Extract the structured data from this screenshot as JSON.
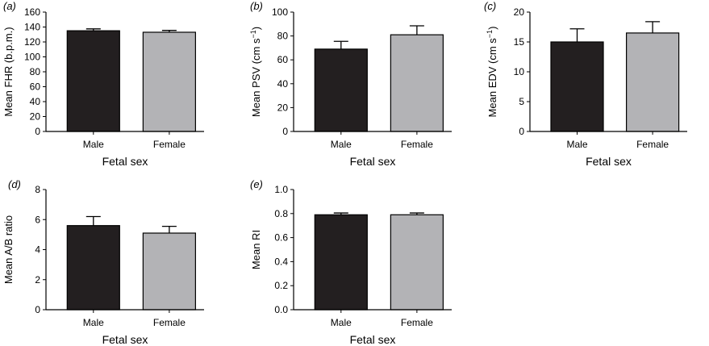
{
  "chart_data": [
    {
      "type": "bar",
      "panel": "a",
      "panel_label": "(a)",
      "categories": [
        "Male",
        "Female"
      ],
      "values": [
        135,
        133
      ],
      "errors": [
        2.5,
        2.5
      ],
      "ylabel": "Mean FHR (b.p.m.)",
      "ylabel_sup": "",
      "ylabel_end": "",
      "xlabel": "Fetal sex",
      "ylim": [
        0,
        160
      ],
      "yticks": [
        0,
        20,
        40,
        60,
        80,
        100,
        120,
        140,
        160
      ],
      "colors": [
        "#231f20",
        "#b3b3b6"
      ]
    },
    {
      "type": "bar",
      "panel": "b",
      "panel_label": "(b)",
      "categories": [
        "Male",
        "Female"
      ],
      "values": [
        69,
        81
      ],
      "errors": [
        6.5,
        7.5
      ],
      "ylabel": "Mean PSV (cm s",
      "ylabel_sup": "−1",
      "ylabel_end": ")",
      "xlabel": "Fetal sex",
      "ylim": [
        0,
        100
      ],
      "yticks": [
        0,
        20,
        40,
        60,
        80,
        100
      ],
      "colors": [
        "#231f20",
        "#b3b3b6"
      ]
    },
    {
      "type": "bar",
      "panel": "c",
      "panel_label": "(c)",
      "categories": [
        "Male",
        "Female"
      ],
      "values": [
        15,
        16.5
      ],
      "errors": [
        2.2,
        1.9
      ],
      "ylabel": "Mean EDV (cm s",
      "ylabel_sup": "−1",
      "ylabel_end": ")",
      "xlabel": "Fetal sex",
      "ylim": [
        0,
        20
      ],
      "yticks": [
        0,
        5,
        10,
        15,
        20
      ],
      "colors": [
        "#231f20",
        "#b3b3b6"
      ]
    },
    {
      "type": "bar",
      "panel": "d",
      "panel_label": "(d)",
      "categories": [
        "Male",
        "Female"
      ],
      "values": [
        5.6,
        5.1
      ],
      "errors": [
        0.6,
        0.45
      ],
      "ylabel": "Mean A/B ratio",
      "ylabel_sup": "",
      "ylabel_end": "",
      "xlabel": "Fetal sex",
      "ylim": [
        0,
        8
      ],
      "yticks": [
        0,
        2,
        4,
        6,
        8
      ],
      "colors": [
        "#231f20",
        "#b3b3b6"
      ]
    },
    {
      "type": "bar",
      "panel": "e",
      "panel_label": "(e)",
      "categories": [
        "Male",
        "Female"
      ],
      "values": [
        0.79,
        0.79
      ],
      "errors": [
        0.015,
        0.015
      ],
      "ylabel": "Mean RI",
      "ylabel_sup": "",
      "ylabel_end": "",
      "xlabel": "Fetal sex",
      "ylim": [
        0,
        1.0
      ],
      "yticks": [
        0,
        0.2,
        0.4,
        0.6,
        0.8,
        1.0
      ],
      "ytick_decimals": 1,
      "colors": [
        "#231f20",
        "#b3b3b6"
      ]
    }
  ]
}
